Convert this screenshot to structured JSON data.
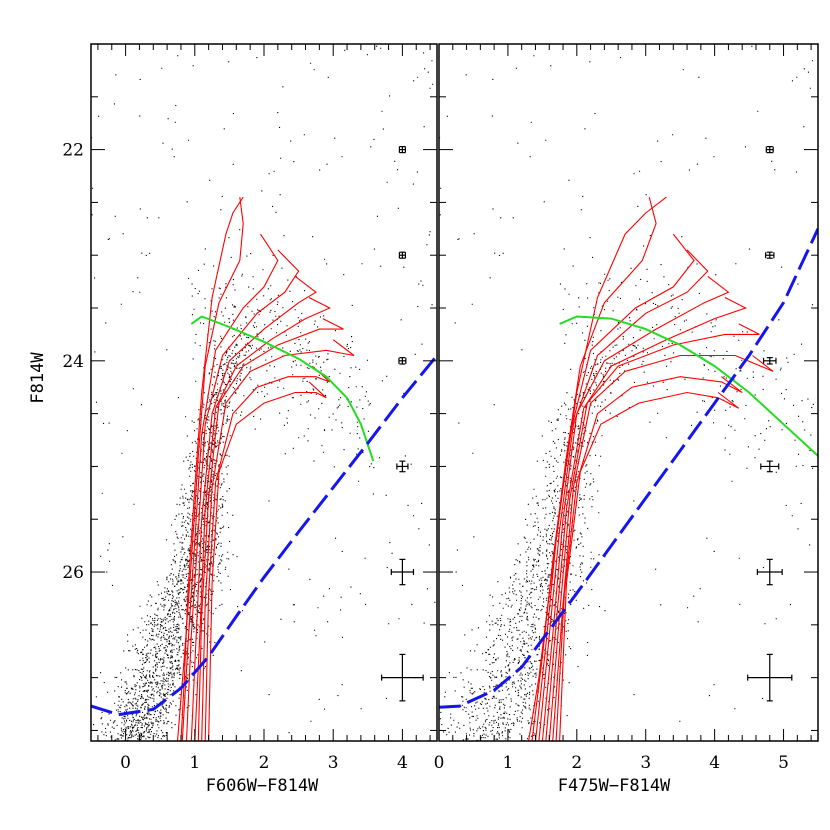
{
  "chart_data": {
    "type": "scatter",
    "ylabel": "F814W",
    "ylim": [
      27.6,
      21.0
    ],
    "y_ticks": [
      "22",
      "24",
      "26"
    ],
    "panels": [
      {
        "name": "left",
        "xlabel": "F606W−F814W",
        "xlim": [
          -0.5,
          4.5
        ],
        "x_ticks": [
          "0",
          "1",
          "2",
          "3",
          "4"
        ],
        "error_bars": {
          "x": 4.0,
          "items": [
            {
              "mag": 22,
              "xerr": 0.03,
              "yerr": 0.02
            },
            {
              "mag": 23,
              "xerr": 0.03,
              "yerr": 0.02
            },
            {
              "mag": 24,
              "xerr": 0.05,
              "yerr": 0.03
            },
            {
              "mag": 25,
              "xerr": 0.08,
              "yerr": 0.05
            },
            {
              "mag": 26,
              "xerr": 0.16,
              "yerr": 0.12
            },
            {
              "mag": 27,
              "xerr": 0.3,
              "yerr": 0.22
            }
          ]
        },
        "completeness_curve": {
          "color": "#1515ee",
          "x": [
            -0.5,
            -0.1,
            0.4,
            0.8,
            1.2,
            1.6,
            2.0,
            2.5,
            3.0,
            3.5,
            4.0,
            4.5
          ],
          "y": [
            27.27,
            27.35,
            27.3,
            27.1,
            26.8,
            26.42,
            26.05,
            25.62,
            25.2,
            24.78,
            24.35,
            23.95
          ]
        },
        "hb_line": {
          "color": "#22dd22",
          "x": [
            0.95,
            1.1,
            1.5,
            2.0,
            2.5,
            2.9,
            3.2,
            3.4,
            3.58
          ],
          "y": [
            23.65,
            23.58,
            23.68,
            23.82,
            23.98,
            24.15,
            24.35,
            24.6,
            24.95
          ]
        },
        "isochrones": {
          "color": "#ff0000",
          "items": [
            {
              "x": [
                0.8,
                0.85,
                0.9,
                1.0,
                1.1,
                1.25,
                1.45,
                1.55,
                1.7
              ],
              "y": [
                27.6,
                27.0,
                26.2,
                25.2,
                24.3,
                23.4,
                22.8,
                22.6,
                22.45
              ]
            },
            {
              "x": [
                0.75,
                0.85,
                0.95,
                1.05,
                1.15,
                1.35,
                1.65,
                1.7,
                1.65
              ],
              "y": [
                27.6,
                26.8,
                25.9,
                24.9,
                24.05,
                23.45,
                23.05,
                22.7,
                22.45
              ]
            },
            {
              "x": [
                0.82,
                0.9,
                1.0,
                1.1,
                1.3,
                1.7,
                2.0,
                2.2,
                1.95
              ],
              "y": [
                27.6,
                26.7,
                25.7,
                24.7,
                23.9,
                23.5,
                23.3,
                23.05,
                22.8
              ]
            },
            {
              "x": [
                0.88,
                0.95,
                1.05,
                1.15,
                1.4,
                1.9,
                2.3,
                2.5,
                2.2
              ],
              "y": [
                27.6,
                26.6,
                25.6,
                24.6,
                23.95,
                23.55,
                23.35,
                23.15,
                22.95
              ]
            },
            {
              "x": [
                0.95,
                1.02,
                1.1,
                1.25,
                1.5,
                2.0,
                2.5,
                2.75,
                2.45
              ],
              "y": [
                27.6,
                26.6,
                25.5,
                24.5,
                24.0,
                23.7,
                23.45,
                23.35,
                23.2
              ]
            },
            {
              "x": [
                1.0,
                1.08,
                1.15,
                1.3,
                1.6,
                2.1,
                2.6,
                2.95,
                2.65
              ],
              "y": [
                27.6,
                26.5,
                25.4,
                24.45,
                24.05,
                23.8,
                23.6,
                23.5,
                23.4
              ]
            },
            {
              "x": [
                1.05,
                1.1,
                1.2,
                1.35,
                1.7,
                2.2,
                2.8,
                3.15,
                2.85
              ],
              "y": [
                27.6,
                26.4,
                25.3,
                24.4,
                24.05,
                23.85,
                23.7,
                23.7,
                23.6
              ]
            },
            {
              "x": [
                1.1,
                1.15,
                1.25,
                1.45,
                1.8,
                2.3,
                2.9,
                3.3,
                3.0
              ],
              "y": [
                27.6,
                26.3,
                25.2,
                24.4,
                24.1,
                23.95,
                23.9,
                23.95,
                23.8
              ]
            },
            {
              "x": [
                1.15,
                1.2,
                1.3,
                1.55,
                1.9,
                2.35,
                2.75,
                2.95,
                2.7
              ],
              "y": [
                27.6,
                26.2,
                25.15,
                24.5,
                24.25,
                24.15,
                24.15,
                24.2,
                24.05
              ]
            },
            {
              "x": [
                1.2,
                1.25,
                1.35,
                1.6,
                2.0,
                2.45,
                2.75,
                2.9,
                2.65
              ],
              "y": [
                27.6,
                26.1,
                25.05,
                24.6,
                24.4,
                24.3,
                24.3,
                24.35,
                24.2
              ]
            }
          ]
        }
      },
      {
        "name": "right",
        "xlabel": "F475W−F814W",
        "xlim": [
          0.0,
          5.5
        ],
        "x_ticks": [
          "0",
          "1",
          "2",
          "3",
          "4",
          "5"
        ],
        "error_bars": {
          "x": 4.8,
          "items": [
            {
              "mag": 22,
              "xerr": 0.05,
              "yerr": 0.02
            },
            {
              "mag": 23,
              "xerr": 0.06,
              "yerr": 0.02
            },
            {
              "mag": 24,
              "xerr": 0.09,
              "yerr": 0.03
            },
            {
              "mag": 25,
              "xerr": 0.13,
              "yerr": 0.05
            },
            {
              "mag": 26,
              "xerr": 0.18,
              "yerr": 0.12
            },
            {
              "mag": 27,
              "xerr": 0.32,
              "yerr": 0.22
            }
          ]
        },
        "completeness_curve": {
          "color": "#1515ee",
          "x": [
            0.0,
            0.3,
            0.8,
            1.2,
            1.6,
            2.0,
            2.5,
            3.0,
            3.5,
            4.0,
            4.5,
            5.0,
            5.5
          ],
          "y": [
            27.28,
            27.27,
            27.12,
            26.9,
            26.55,
            26.2,
            25.75,
            25.3,
            24.85,
            24.4,
            23.95,
            23.45,
            22.75
          ]
        },
        "hb_line": {
          "color": "#22dd22",
          "x": [
            1.75,
            2.0,
            2.5,
            3.0,
            3.5,
            4.0,
            4.5,
            5.0,
            5.5
          ],
          "y": [
            23.65,
            23.58,
            23.6,
            23.7,
            23.85,
            24.05,
            24.3,
            24.6,
            24.9
          ]
        },
        "isochrones": {
          "color": "#ff0000",
          "items": [
            {
              "x": [
                1.3,
                1.45,
                1.6,
                1.8,
                2.0,
                2.3,
                2.7,
                3.0,
                3.3
              ],
              "y": [
                27.6,
                27.0,
                26.2,
                25.2,
                24.3,
                23.4,
                22.8,
                22.6,
                22.45
              ]
            },
            {
              "x": [
                1.35,
                1.5,
                1.65,
                1.85,
                2.05,
                2.4,
                2.95,
                3.15,
                3.05
              ],
              "y": [
                27.6,
                26.8,
                25.9,
                24.9,
                24.05,
                23.45,
                23.05,
                22.7,
                22.45
              ]
            },
            {
              "x": [
                1.4,
                1.55,
                1.7,
                1.9,
                2.2,
                2.85,
                3.4,
                3.7,
                3.4
              ],
              "y": [
                27.6,
                26.7,
                25.7,
                24.7,
                23.9,
                23.5,
                23.3,
                23.05,
                22.8
              ]
            },
            {
              "x": [
                1.45,
                1.6,
                1.75,
                1.95,
                2.3,
                3.0,
                3.6,
                3.9,
                3.6
              ],
              "y": [
                27.6,
                26.6,
                25.6,
                24.6,
                23.95,
                23.55,
                23.35,
                23.15,
                22.95
              ]
            },
            {
              "x": [
                1.5,
                1.65,
                1.8,
                2.0,
                2.4,
                3.15,
                3.85,
                4.2,
                3.9
              ],
              "y": [
                27.6,
                26.6,
                25.5,
                24.5,
                24.0,
                23.7,
                23.45,
                23.35,
                23.2
              ]
            },
            {
              "x": [
                1.55,
                1.7,
                1.85,
                2.1,
                2.5,
                3.3,
                4.0,
                4.45,
                4.15
              ],
              "y": [
                27.6,
                26.5,
                25.4,
                24.45,
                24.05,
                23.8,
                23.6,
                23.5,
                23.4
              ]
            },
            {
              "x": [
                1.6,
                1.75,
                1.9,
                2.15,
                2.6,
                3.4,
                4.15,
                4.65,
                4.35
              ],
              "y": [
                27.6,
                26.4,
                25.3,
                24.4,
                24.05,
                23.85,
                23.75,
                23.75,
                23.65
              ]
            },
            {
              "x": [
                1.65,
                1.8,
                1.95,
                2.2,
                2.7,
                3.5,
                4.3,
                4.85,
                4.55
              ],
              "y": [
                27.6,
                26.3,
                25.2,
                24.4,
                24.1,
                23.95,
                23.95,
                24.1,
                23.95
              ]
            },
            {
              "x": [
                1.7,
                1.82,
                2.0,
                2.3,
                2.8,
                3.5,
                4.1,
                4.4,
                4.1
              ],
              "y": [
                27.6,
                26.2,
                25.15,
                24.5,
                24.25,
                24.15,
                24.2,
                24.3,
                24.15
              ]
            },
            {
              "x": [
                1.75,
                1.85,
                2.05,
                2.35,
                2.9,
                3.6,
                4.05,
                4.35,
                4.05
              ],
              "y": [
                27.6,
                26.1,
                25.05,
                24.6,
                24.4,
                24.3,
                24.35,
                24.45,
                24.3
              ]
            }
          ]
        }
      }
    ]
  }
}
